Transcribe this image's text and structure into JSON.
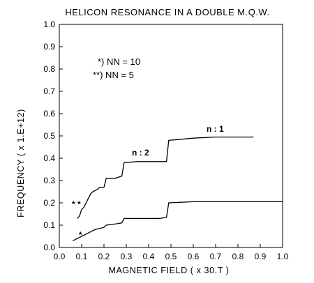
{
  "chart_data": {
    "type": "line",
    "title": "HELICON RESONANCE IN A DOUBLE   M.Q.W.",
    "xlabel": "MAGNETIC   FIELD ( x 30.T )",
    "ylabel": "FREQUENCY ( x 1.E+12)",
    "xlim": [
      0.0,
      1.0
    ],
    "ylim": [
      0.0,
      1.0
    ],
    "xticks": [
      "0.0",
      "0.1",
      "0.2",
      "0.3",
      "0.4",
      "0.5",
      "0.6",
      "0.7",
      "0.8",
      "0.9",
      "1.0"
    ],
    "yticks": [
      "0.0",
      "0.1",
      "0.2",
      "0.3",
      "0.4",
      "0.5",
      "0.6",
      "0.7",
      "0.8",
      "0.9",
      "1.0"
    ],
    "legend": {
      "line1": "*) NN = 10",
      "line2": "**) NN = 5"
    },
    "annotations": {
      "upper_series_label": "n : 2",
      "upper_series_label2": "n : 1",
      "marker_upper": "* *",
      "marker_lower": "*"
    },
    "series": [
      {
        "x": [
          0.08,
          0.09,
          0.1,
          0.11,
          0.12,
          0.13,
          0.14,
          0.15,
          0.17,
          0.18,
          0.2,
          0.21,
          0.25,
          0.28,
          0.29,
          0.35,
          0.4,
          0.44,
          0.48,
          0.49,
          0.6,
          0.7,
          0.8,
          0.87
        ],
        "y": [
          0.13,
          0.14,
          0.17,
          0.18,
          0.2,
          0.22,
          0.24,
          0.25,
          0.26,
          0.27,
          0.27,
          0.31,
          0.31,
          0.32,
          0.38,
          0.385,
          0.385,
          0.385,
          0.385,
          0.48,
          0.49,
          0.495,
          0.495,
          0.495
        ]
      },
      {
        "x": [
          0.06,
          0.08,
          0.1,
          0.12,
          0.14,
          0.16,
          0.18,
          0.2,
          0.21,
          0.25,
          0.28,
          0.29,
          0.35,
          0.4,
          0.45,
          0.48,
          0.49,
          0.6,
          0.7,
          0.8,
          0.9,
          1.0
        ],
        "y": [
          0.03,
          0.04,
          0.05,
          0.06,
          0.07,
          0.08,
          0.085,
          0.09,
          0.1,
          0.105,
          0.11,
          0.13,
          0.13,
          0.13,
          0.13,
          0.135,
          0.2,
          0.205,
          0.205,
          0.205,
          0.205,
          0.205
        ]
      }
    ]
  }
}
